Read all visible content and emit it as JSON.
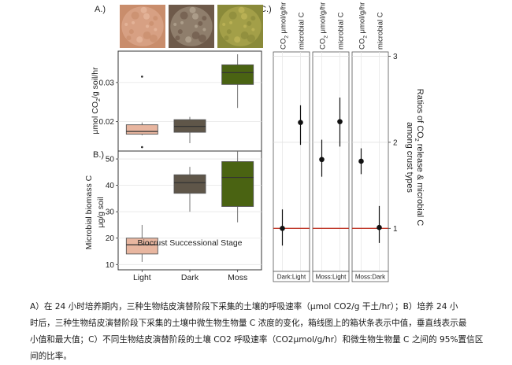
{
  "panel_labels": [
    "A.)",
    "B.)",
    "C.)"
  ],
  "photos": [
    {
      "name": "light-crust-photo",
      "base": "#c98d6c",
      "spots": "#e8b9a0"
    },
    {
      "name": "dark-crust-photo",
      "base": "#6e5a4a",
      "spots": "#b7aa96"
    },
    {
      "name": "moss-crust-photo",
      "base": "#8a8a3a",
      "spots": "#c2b85a"
    }
  ],
  "x_axis_title": "Biocrust Successional Stage",
  "right_axis_title": [
    "Ratios of CO",
    "2",
    " release & microbial C",
    "among crust types"
  ],
  "facet_header": [
    "CO",
    "2",
    " μmol/g/hr",
    "microbial C"
  ],
  "colors": {
    "Light": "#e8b6a0",
    "Dark": "#5f5649",
    "Moss": "#4a6312",
    "ref_line": "#c0392b",
    "frame": "#333333"
  },
  "chart_data": [
    {
      "id": "A",
      "type": "box",
      "ylabel_parts": [
        "μmol CO",
        "2",
        "/g soil/hr"
      ],
      "categories": [
        "Light",
        "Dark",
        "Moss"
      ],
      "ylim": [
        0.0125,
        0.038
      ],
      "yticks": [
        "0.02",
        "0.03"
      ],
      "ytick_values": [
        0.02,
        0.03
      ],
      "boxes": [
        {
          "name": "Light",
          "min": 0.0165,
          "q1": 0.0168,
          "median": 0.0175,
          "q3": 0.0192,
          "max": 0.0198,
          "outliers": [
            0.0315,
            0.0135
          ]
        },
        {
          "name": "Dark",
          "min": 0.0145,
          "q1": 0.0173,
          "median": 0.0188,
          "q3": 0.0205,
          "max": 0.0212,
          "outliers": []
        },
        {
          "name": "Moss",
          "min": 0.0235,
          "q1": 0.0295,
          "median": 0.0325,
          "q3": 0.0345,
          "max": 0.0372,
          "outliers": []
        }
      ]
    },
    {
      "id": "B",
      "type": "box",
      "ylabel_parts": [
        "Microbial biomass C",
        "μg/g soil"
      ],
      "categories": [
        "Light",
        "Dark",
        "Moss"
      ],
      "ylim": [
        8,
        53
      ],
      "yticks": [
        "10",
        "20",
        "30",
        "40",
        "50"
      ],
      "ytick_values": [
        10,
        20,
        30,
        40,
        50
      ],
      "boxes": [
        {
          "name": "Light",
          "min": 11,
          "q1": 14,
          "median": 17.5,
          "q3": 20,
          "max": 25,
          "outliers": []
        },
        {
          "name": "Dark",
          "min": 30,
          "q1": 37,
          "median": 41,
          "q3": 44,
          "max": 47,
          "outliers": []
        },
        {
          "name": "Moss",
          "min": 26,
          "q1": 32,
          "median": 43,
          "q3": 49,
          "max": 53,
          "outliers": []
        }
      ]
    },
    {
      "id": "C",
      "type": "pointrange",
      "facets": [
        "Dark:Light",
        "Moss:Light",
        "Moss:Dark"
      ],
      "ylim": [
        0.5,
        3.05
      ],
      "yticks": [
        "1",
        "2",
        "3"
      ],
      "ytick_values": [
        1,
        2,
        3
      ],
      "reference_line": 1,
      "points": [
        {
          "facet": "Dark:Light",
          "series": "CO2",
          "value": 1.0,
          "low": 0.8,
          "high": 1.22
        },
        {
          "facet": "Dark:Light",
          "series": "microbial C",
          "value": 2.23,
          "low": 1.97,
          "high": 2.43
        },
        {
          "facet": "Moss:Light",
          "series": "CO2",
          "value": 1.8,
          "low": 1.6,
          "high": 2.03
        },
        {
          "facet": "Moss:Light",
          "series": "microbial C",
          "value": 2.24,
          "low": 1.95,
          "high": 2.52
        },
        {
          "facet": "Moss:Dark",
          "series": "CO2",
          "value": 1.78,
          "low": 1.63,
          "high": 1.93
        },
        {
          "facet": "Moss:Dark",
          "series": "microbial C",
          "value": 1.01,
          "low": 0.83,
          "high": 1.26
        }
      ]
    }
  ],
  "caption_lines": [
    "A）在 24 小时培养期内，三种生物结皮演替阶段下采集的土壤的呼吸速率（μmol CO2/g 干土/hr）；B）培养 24 小",
    "时后，三种生物结皮演替阶段下采集的土壤中微生物生物量 C 浓度的变化，箱线图上的箱状条表示中值，垂直线表示最",
    "小值和最大值；C）不同生物结皮演替阶段的土壤 CO2 呼吸速率（CO2μmol/g/hr）和微生物生物量 C 之间的 95%置信区",
    "间的比率。"
  ]
}
